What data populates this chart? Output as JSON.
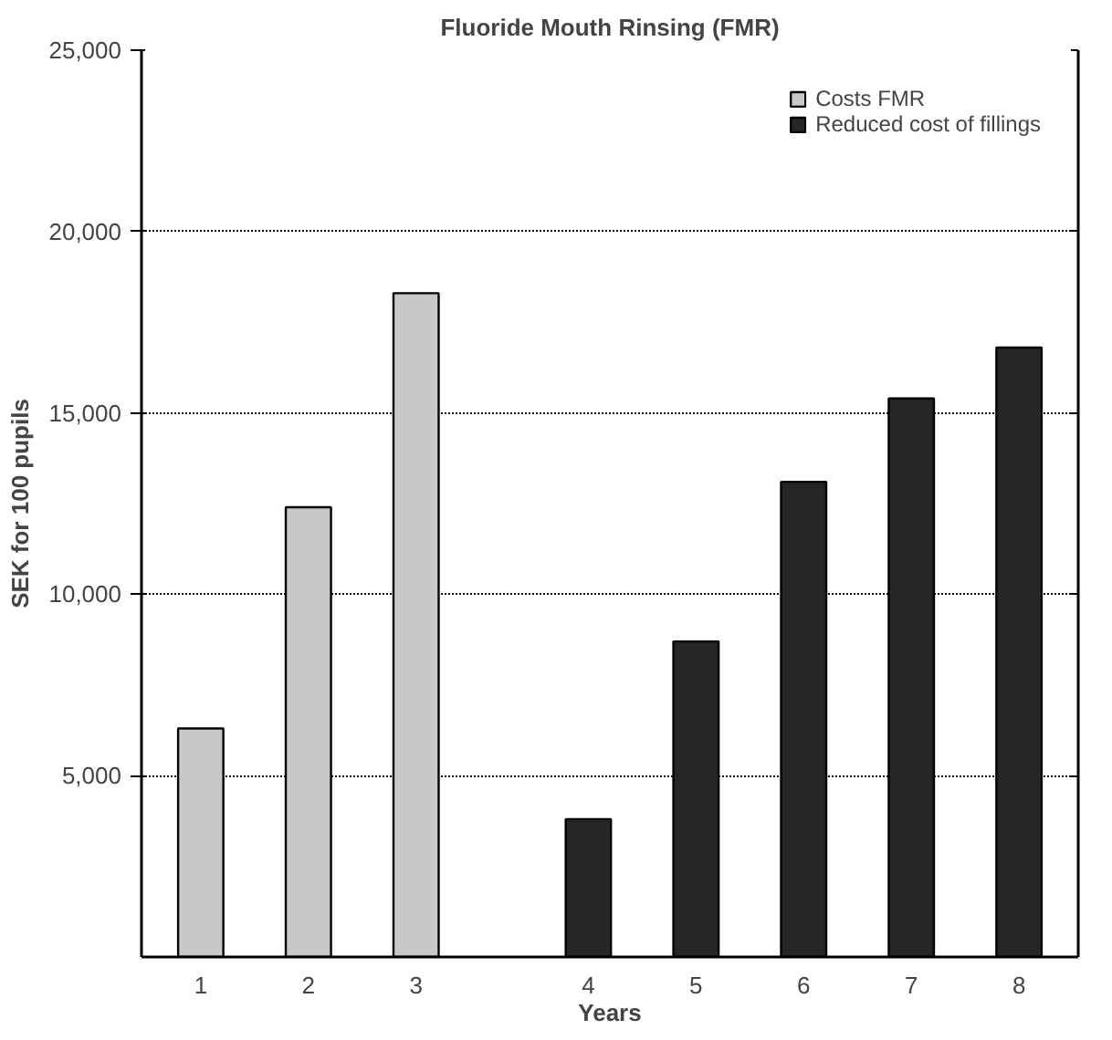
{
  "chart_data": {
    "type": "bar",
    "title": "Fluoride Mouth Rinsing (FMR)",
    "xlabel": "Years",
    "ylabel": "SEK for 100 pupils",
    "categories": [
      "1",
      "2",
      "3",
      "4",
      "5",
      "6",
      "7",
      "8"
    ],
    "series": [
      {
        "name": "Costs FMR",
        "color": "#c8c8c8",
        "values": [
          6300,
          12400,
          18300,
          null,
          null,
          null,
          null,
          null
        ]
      },
      {
        "name": "Reduced cost of fillings",
        "color": "#262626",
        "values": [
          null,
          null,
          null,
          3800,
          8700,
          13100,
          15400,
          16800
        ]
      }
    ],
    "ylim": [
      0,
      25000
    ],
    "yticks": [
      {
        "value": 5000,
        "label": "5,000"
      },
      {
        "value": 10000,
        "label": "10,000"
      },
      {
        "value": 15000,
        "label": "15,000"
      },
      {
        "value": 20000,
        "label": "20,000"
      },
      {
        "value": 25000,
        "label": "25,000"
      }
    ],
    "grid": "y",
    "legend": "top right"
  }
}
